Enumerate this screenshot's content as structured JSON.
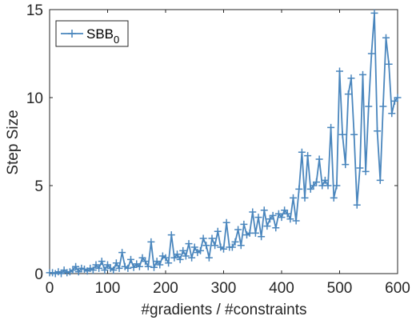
{
  "chart_data": {
    "type": "line",
    "title": "",
    "xlabel": "#gradients / #constraints",
    "ylabel": "Step Size",
    "xlim": [
      0,
      600
    ],
    "ylim": [
      0,
      15
    ],
    "xticks": [
      0,
      100,
      200,
      300,
      400,
      500,
      600
    ],
    "yticks": [
      0,
      5,
      10,
      15
    ],
    "grid": false,
    "legend_position": "top-left",
    "series": [
      {
        "name": "SBB",
        "name_subscript": "0",
        "color": "#4a86bd",
        "marker": "plus",
        "x": [
          0,
          5,
          10,
          15,
          20,
          25,
          30,
          35,
          40,
          45,
          50,
          55,
          60,
          65,
          70,
          75,
          80,
          85,
          90,
          95,
          100,
          105,
          110,
          115,
          120,
          125,
          130,
          135,
          140,
          145,
          150,
          155,
          160,
          165,
          170,
          175,
          180,
          185,
          190,
          195,
          200,
          205,
          210,
          215,
          220,
          225,
          230,
          235,
          240,
          245,
          250,
          255,
          260,
          265,
          270,
          275,
          280,
          285,
          290,
          295,
          300,
          305,
          310,
          315,
          320,
          325,
          330,
          335,
          340,
          345,
          350,
          355,
          360,
          365,
          370,
          375,
          380,
          385,
          390,
          395,
          400,
          405,
          410,
          415,
          420,
          425,
          430,
          435,
          440,
          445,
          450,
          455,
          460,
          465,
          470,
          475,
          480,
          485,
          490,
          495,
          500,
          505,
          510,
          515,
          520,
          525,
          530,
          535,
          540,
          545,
          550,
          555,
          560,
          565,
          570,
          575,
          580,
          585,
          590,
          595,
          600
        ],
        "y": [
          0.05,
          0.05,
          0.0,
          0.1,
          0.0,
          0.2,
          0.05,
          0.1,
          0.2,
          0.4,
          0.1,
          0.3,
          0.25,
          0.15,
          0.3,
          0.2,
          0.5,
          0.3,
          0.7,
          0.2,
          0.5,
          0.3,
          0.2,
          0.6,
          0.3,
          1.2,
          0.4,
          0.3,
          0.8,
          0.35,
          0.55,
          0.4,
          0.9,
          0.7,
          0.4,
          1.8,
          0.35,
          0.7,
          0.5,
          1.0,
          0.9,
          0.6,
          2.2,
          0.9,
          1.1,
          0.8,
          1.3,
          1.0,
          1.7,
          0.9,
          1.5,
          1.2,
          1.3,
          2.0,
          1.6,
          0.9,
          2.0,
          1.6,
          2.4,
          1.5,
          1.4,
          2.9,
          1.5,
          1.5,
          1.8,
          2.5,
          1.6,
          2.8,
          2.2,
          2.3,
          3.5,
          2.3,
          3.2,
          2.1,
          3.6,
          2.7,
          3.1,
          3.3,
          2.6,
          3.4,
          3.2,
          3.6,
          3.4,
          3.1,
          4.3,
          3.0,
          4.8,
          6.9,
          4.3,
          6.7,
          4.8,
          5.0,
          5.2,
          6.5,
          5.0,
          5.3,
          5.0,
          8.3,
          4.3,
          5.0,
          11.5,
          7.9,
          6.2,
          10.2,
          11.1,
          7.9,
          3.9,
          6.0,
          11.3,
          5.8,
          9.5,
          12.5,
          14.8,
          8.1,
          5.3,
          9.5,
          13.4,
          11.9,
          9.1,
          9.8,
          10.0
        ]
      }
    ]
  }
}
